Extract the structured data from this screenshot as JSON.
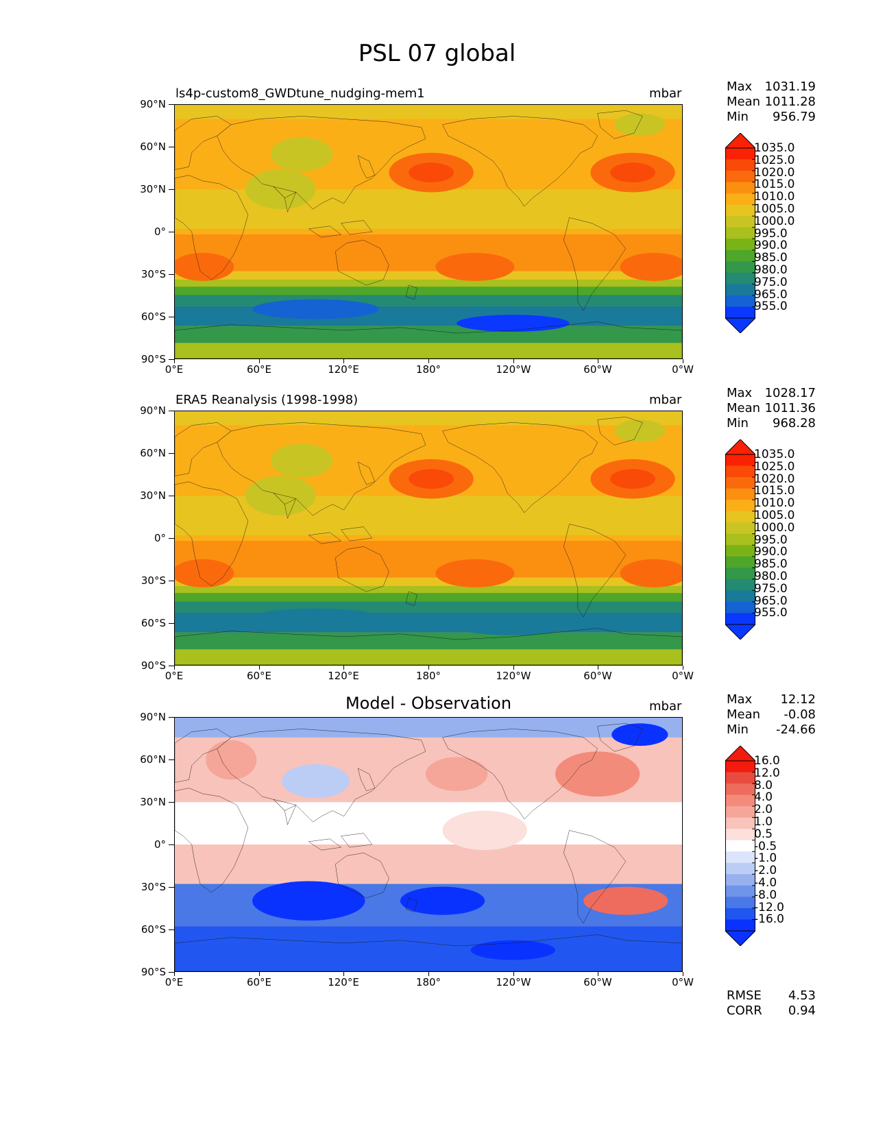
{
  "title": "PSL 07 global",
  "axes": {
    "lat_labels": [
      "90°N",
      "60°N",
      "30°N",
      "0°",
      "30°S",
      "60°S",
      "90°S"
    ],
    "lon_labels": [
      "0°E",
      "60°E",
      "120°E",
      "180°",
      "120°W",
      "60°W",
      "0°W"
    ]
  },
  "colors": {
    "abs_ramp": [
      "#0a38ff",
      "#1562d2",
      "#1a7a9a",
      "#248a72",
      "#33984a",
      "#4ea62a",
      "#7ab318",
      "#a9c01e",
      "#c8c424",
      "#e8c421",
      "#fbaf17",
      "#fb8f10",
      "#fa6a0c",
      "#fa4a08",
      "#fa2204"
    ],
    "diff_ramp": [
      "#0a32ff",
      "#2157f0",
      "#4a78e6",
      "#6f94ea",
      "#97b1ef",
      "#bccdf5",
      "#dbe4fa",
      "#ffffff",
      "#fbe0dc",
      "#f8c3ba",
      "#f5a698",
      "#f38b7b",
      "#ee6c5d",
      "#e94b3f",
      "#f31b0e"
    ],
    "land": "#1a1a1a"
  },
  "panels": [
    {
      "id": "model",
      "subtitle": "ls4p-custom8_GWDtune_nudging-mem1",
      "units": "mbar",
      "stats": [
        {
          "label": "Max",
          "value": "1031.19"
        },
        {
          "label": "Mean",
          "value": "1011.28"
        },
        {
          "label": "Min",
          "value": "956.79"
        }
      ],
      "colorbar_ticks": [
        "1035.0",
        "1025.0",
        "1020.0",
        "1015.0",
        "1010.0",
        "1005.0",
        "1000.0",
        "995.0",
        "990.0",
        "985.0",
        "980.0",
        "975.0",
        "965.0",
        "955.0"
      ]
    },
    {
      "id": "obs",
      "subtitle": "ERA5 Reanalysis (1998-1998)",
      "units": "mbar",
      "stats": [
        {
          "label": "Max",
          "value": "1028.17"
        },
        {
          "label": "Mean",
          "value": "1011.36"
        },
        {
          "label": "Min",
          "value": "968.28"
        }
      ],
      "colorbar_ticks": [
        "1035.0",
        "1025.0",
        "1020.0",
        "1015.0",
        "1010.0",
        "1005.0",
        "1000.0",
        "995.0",
        "990.0",
        "985.0",
        "980.0",
        "975.0",
        "965.0",
        "955.0"
      ]
    },
    {
      "id": "diff",
      "subtitle": "Model - Observation",
      "units": "mbar",
      "stats": [
        {
          "label": "Max",
          "value": "12.12"
        },
        {
          "label": "Mean",
          "value": "-0.08"
        },
        {
          "label": "Min",
          "value": "-24.66"
        }
      ],
      "colorbar_ticks": [
        "16.0",
        "12.0",
        "8.0",
        "4.0",
        "2.0",
        "1.0",
        "0.5",
        "-0.5",
        "-1.0",
        "-2.0",
        "-4.0",
        "-8.0",
        "-12.0",
        "-16.0"
      ]
    }
  ],
  "metrics": [
    {
      "label": "RMSE",
      "value": "4.53"
    },
    {
      "label": "CORR",
      "value": "0.94"
    }
  ]
}
